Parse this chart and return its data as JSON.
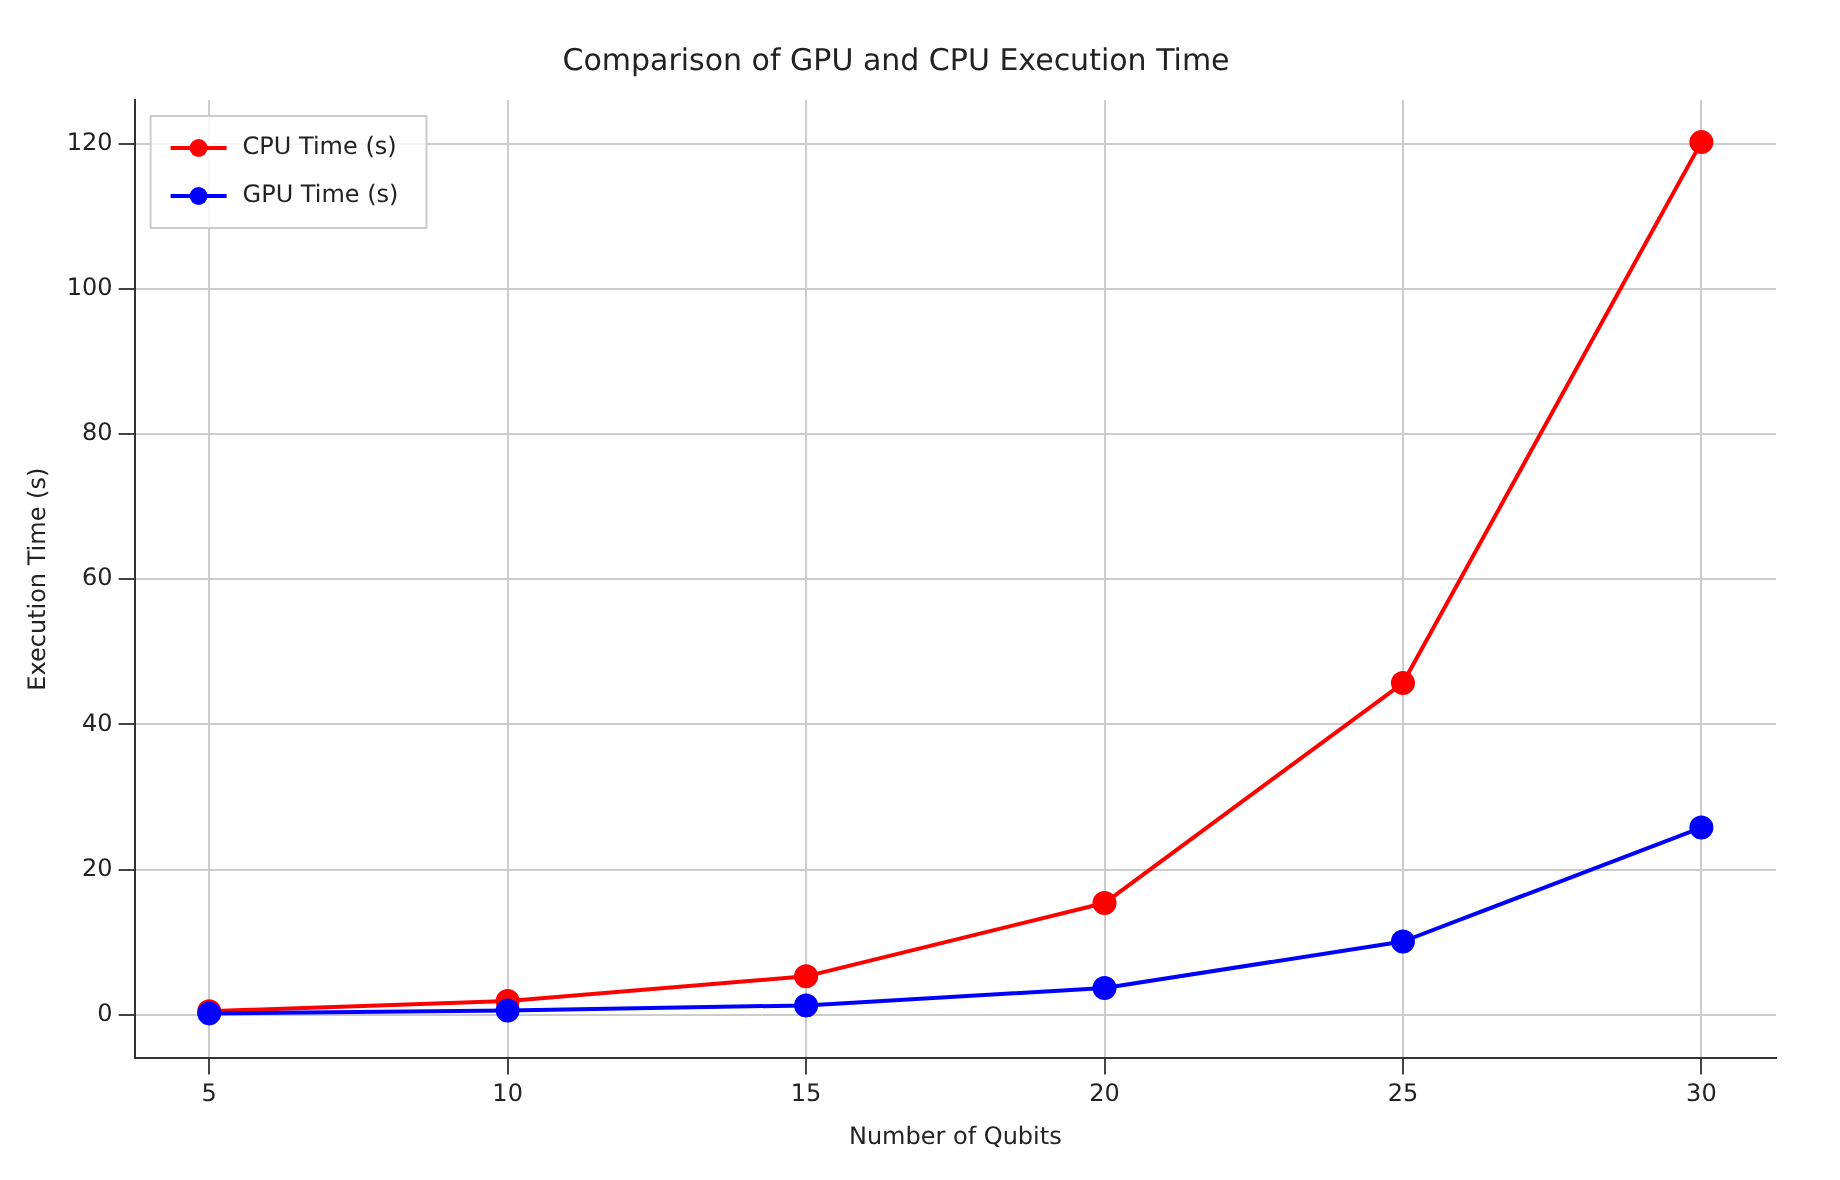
{
  "chart_data": {
    "type": "line",
    "title": "Comparison of GPU and CPU Execution Time",
    "xlabel": "Number of Qubits",
    "ylabel": "Execution Time (s)",
    "x": [
      5,
      10,
      15,
      20,
      25,
      30
    ],
    "series": [
      {
        "name": "CPU Time (s)",
        "color": "#ff0000",
        "values": [
          0.5,
          1.9,
          5.3,
          15.4,
          45.7,
          120.2
        ]
      },
      {
        "name": "GPU Time (s)",
        "color": "#0000ff",
        "values": [
          0.2,
          0.6,
          1.3,
          3.7,
          10.1,
          25.8
        ]
      }
    ],
    "xlim": [
      3.75,
      31.25
    ],
    "xticks": [
      5,
      10,
      15,
      20,
      25,
      30
    ],
    "ylim": [
      -6,
      126
    ],
    "yticks": [
      0,
      20,
      40,
      60,
      80,
      100,
      120
    ],
    "grid": true,
    "legend": "top left",
    "marker": "circle",
    "line_style": "solid"
  }
}
